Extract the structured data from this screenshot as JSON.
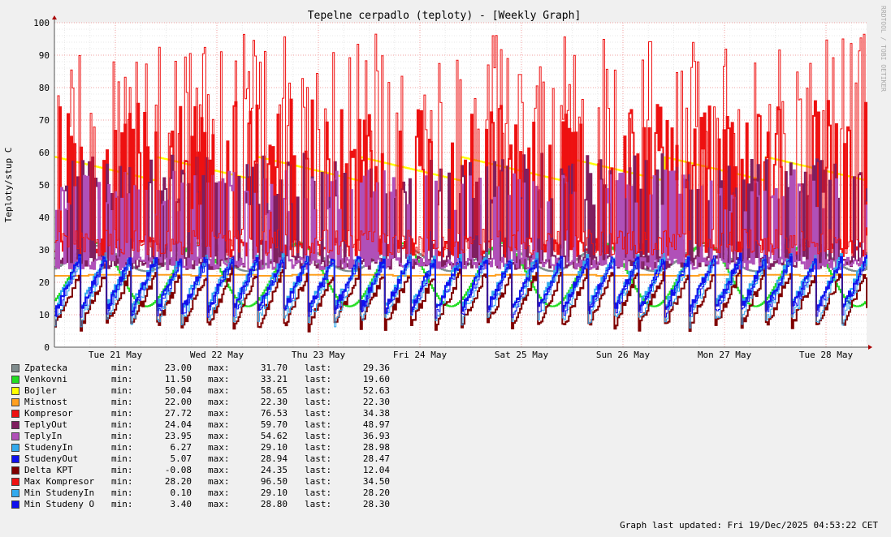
{
  "chart_data": {
    "type": "line",
    "title": "Tepelne cerpadlo (teploty) - [Weekly Graph]",
    "ylabel": "Teploty/stup C",
    "watermark": "RRDTOOL / TOBI OETIKER",
    "ylim": [
      0,
      100
    ],
    "yticks": [
      "0",
      "10",
      "20",
      "30",
      "40",
      "50",
      "60",
      "70",
      "80",
      "90",
      "100"
    ],
    "x_ticks": [
      "Tue 21 May",
      "Wed 22 May",
      "Thu 23 May",
      "Fri 24 May",
      "Sat 25 May",
      "Sun 26 May",
      "Mon 27 May",
      "Tue 28 May"
    ],
    "grid": true,
    "series": [
      {
        "name": "Zpatecka",
        "color": "#7f8c8d",
        "min": "23.00",
        "max": "31.70",
        "last": "29.36",
        "y_min": 23.0,
        "y_max": 31.7,
        "y_last": 29.36
      },
      {
        "name": "Venkovni",
        "color": "#22dd22",
        "min": "11.50",
        "max": "33.21",
        "last": "19.60",
        "y_min": 11.5,
        "y_max": 33.21,
        "y_last": 19.6
      },
      {
        "name": "Bojler",
        "color": "#ffff00",
        "min": "50.04",
        "max": "58.65",
        "last": "52.63",
        "y_min": 50.04,
        "y_max": 58.65,
        "y_last": 52.63
      },
      {
        "name": "Mistnost",
        "color": "#ffa020",
        "min": "22.00",
        "max": "22.30",
        "last": "22.30",
        "y_min": 22.0,
        "y_max": 22.3,
        "y_last": 22.3
      },
      {
        "name": "Kompresor",
        "color": "#ee1111",
        "min": "27.72",
        "max": "76.53",
        "last": "34.38",
        "y_min": 27.72,
        "y_max": 76.53,
        "y_last": 34.38
      },
      {
        "name": "TeplyOut",
        "color": "#7f1f5f",
        "min": "24.04",
        "max": "59.70",
        "last": "48.97",
        "y_min": 24.04,
        "y_max": 59.7,
        "y_last": 48.97
      },
      {
        "name": "TeplyIn",
        "color": "#b050b8",
        "min": "23.95",
        "max": "54.62",
        "last": "36.93",
        "y_min": 23.95,
        "y_max": 54.62,
        "y_last": 36.93
      },
      {
        "name": "StudenyIn",
        "color": "#33aaee",
        "min": "6.27",
        "max": "29.10",
        "last": "28.98",
        "y_min": 6.27,
        "y_max": 29.1,
        "y_last": 28.98
      },
      {
        "name": "StudenyOut",
        "color": "#1111ee",
        "min": "5.07",
        "max": "28.94",
        "last": "28.47",
        "y_min": 5.07,
        "y_max": 28.94,
        "y_last": 28.47
      },
      {
        "name": "Delta KPT",
        "color": "#7f0000",
        "min": "-0.08",
        "max": "24.35",
        "last": "12.04",
        "y_min": -0.08,
        "y_max": 24.35,
        "y_last": 12.04
      },
      {
        "name": "Max Kompresor",
        "color": "#ee1111",
        "min": "28.20",
        "max": "96.50",
        "last": "34.50",
        "y_min": 28.2,
        "y_max": 96.5,
        "y_last": 34.5
      },
      {
        "name": "Min StudenyIn",
        "color": "#33aaee",
        "min": "0.10",
        "max": "29.10",
        "last": "28.20",
        "y_min": 0.1,
        "y_max": 29.1,
        "y_last": 28.2
      },
      {
        "name": "Min Studeny O",
        "color": "#1111ee",
        "min": "3.40",
        "max": "28.80",
        "last": "28.30",
        "y_min": 3.4,
        "y_max": 28.8,
        "y_last": 28.3
      }
    ]
  },
  "legend_labels": {
    "min": "min:",
    "max": "max:",
    "last": "last:"
  },
  "footer": "Graph last updated: Fri 19/Dec/2025 04:53:22 CET"
}
